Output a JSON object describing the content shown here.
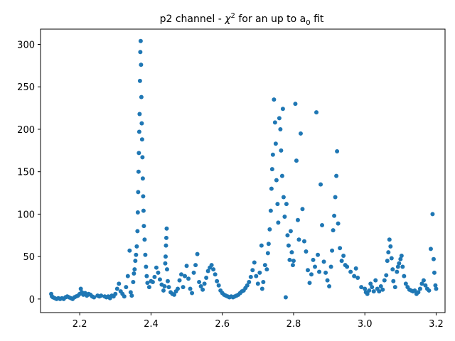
{
  "chart_data": {
    "type": "scatter",
    "title": {
      "prefix": "p2 channel - ",
      "chi": "χ",
      "chi_sup": "2",
      "middle": " for an up to a",
      "sub": "0",
      "suffix": " fit"
    },
    "xlabel": "",
    "ylabel": "",
    "xlim": [
      2.09,
      3.225
    ],
    "ylim": [
      -16,
      318
    ],
    "xticks": [
      2.2,
      2.4,
      2.6,
      2.8,
      3.0,
      3.2
    ],
    "xtick_labels": [
      "2.2",
      "2.4",
      "2.6",
      "2.8",
      "3.0",
      "3.2"
    ],
    "yticks": [
      0,
      50,
      100,
      150,
      200,
      250,
      300
    ],
    "ytick_labels": [
      "0",
      "50",
      "100",
      "150",
      "200",
      "250",
      "300"
    ],
    "grid": false,
    "legend": "none",
    "marker_color": "#1f77b4",
    "series": [
      {
        "points": [
          [
            2.12,
            6
          ],
          [
            2.122,
            3
          ],
          [
            2.125,
            2
          ],
          [
            2.13,
            1
          ],
          [
            2.135,
            0
          ],
          [
            2.14,
            1
          ],
          [
            2.145,
            0
          ],
          [
            2.15,
            1
          ],
          [
            2.155,
            0
          ],
          [
            2.16,
            2
          ],
          [
            2.165,
            3
          ],
          [
            2.17,
            2
          ],
          [
            2.175,
            1
          ],
          [
            2.18,
            0
          ],
          [
            2.185,
            2
          ],
          [
            2.19,
            3
          ],
          [
            2.195,
            4
          ],
          [
            2.2,
            6
          ],
          [
            2.203,
            12
          ],
          [
            2.206,
            8
          ],
          [
            2.21,
            5
          ],
          [
            2.215,
            7
          ],
          [
            2.22,
            4
          ],
          [
            2.225,
            6
          ],
          [
            2.23,
            5
          ],
          [
            2.235,
            3
          ],
          [
            2.24,
            2
          ],
          [
            2.25,
            4
          ],
          [
            2.255,
            3
          ],
          [
            2.26,
            4
          ],
          [
            2.27,
            3
          ],
          [
            2.275,
            2
          ],
          [
            2.28,
            3
          ],
          [
            2.285,
            1
          ],
          [
            2.29,
            4
          ],
          [
            2.295,
            3
          ],
          [
            2.3,
            6
          ],
          [
            2.305,
            12
          ],
          [
            2.31,
            18
          ],
          [
            2.315,
            9
          ],
          [
            2.32,
            6
          ],
          [
            2.325,
            3
          ],
          [
            2.33,
            14
          ],
          [
            2.335,
            27
          ],
          [
            2.34,
            57
          ],
          [
            2.343,
            8
          ],
          [
            2.346,
            4
          ],
          [
            2.35,
            20
          ],
          [
            2.352,
            30
          ],
          [
            2.354,
            35
          ],
          [
            2.356,
            45
          ],
          [
            2.358,
            52
          ],
          [
            2.36,
            62
          ],
          [
            2.362,
            80
          ],
          [
            2.363,
            102
          ],
          [
            2.364,
            126
          ],
          [
            2.365,
            150
          ],
          [
            2.366,
            172
          ],
          [
            2.367,
            197
          ],
          [
            2.368,
            218
          ],
          [
            2.369,
            257
          ],
          [
            2.37,
            291
          ],
          [
            2.371,
            304
          ],
          [
            2.372,
            276
          ],
          [
            2.373,
            238
          ],
          [
            2.374,
            207
          ],
          [
            2.375,
            188
          ],
          [
            2.376,
            167
          ],
          [
            2.377,
            142
          ],
          [
            2.378,
            121
          ],
          [
            2.379,
            104
          ],
          [
            2.38,
            86
          ],
          [
            2.382,
            70
          ],
          [
            2.384,
            52
          ],
          [
            2.386,
            38
          ],
          [
            2.388,
            27
          ],
          [
            2.39,
            19
          ],
          [
            2.395,
            14
          ],
          [
            2.4,
            21
          ],
          [
            2.405,
            20
          ],
          [
            2.41,
            26
          ],
          [
            2.415,
            37
          ],
          [
            2.42,
            31
          ],
          [
            2.425,
            23
          ],
          [
            2.43,
            17
          ],
          [
            2.435,
            10
          ],
          [
            2.438,
            15
          ],
          [
            2.44,
            42
          ],
          [
            2.441,
            50
          ],
          [
            2.442,
            63
          ],
          [
            2.443,
            72
          ],
          [
            2.444,
            83
          ],
          [
            2.445,
            35
          ],
          [
            2.447,
            21
          ],
          [
            2.45,
            14
          ],
          [
            2.455,
            8
          ],
          [
            2.46,
            6
          ],
          [
            2.465,
            5
          ],
          [
            2.47,
            9
          ],
          [
            2.475,
            12
          ],
          [
            2.48,
            22
          ],
          [
            2.485,
            29
          ],
          [
            2.49,
            14
          ],
          [
            2.495,
            27
          ],
          [
            2.5,
            39
          ],
          [
            2.505,
            24
          ],
          [
            2.51,
            12
          ],
          [
            2.515,
            7
          ],
          [
            2.52,
            31
          ],
          [
            2.525,
            40
          ],
          [
            2.53,
            53
          ],
          [
            2.535,
            20
          ],
          [
            2.54,
            15
          ],
          [
            2.545,
            11
          ],
          [
            2.55,
            18
          ],
          [
            2.555,
            25
          ],
          [
            2.56,
            33
          ],
          [
            2.565,
            37
          ],
          [
            2.57,
            40
          ],
          [
            2.575,
            35
          ],
          [
            2.58,
            29
          ],
          [
            2.585,
            21
          ],
          [
            2.59,
            16
          ],
          [
            2.595,
            10
          ],
          [
            2.6,
            7
          ],
          [
            2.605,
            5
          ],
          [
            2.61,
            4
          ],
          [
            2.615,
            3
          ],
          [
            2.62,
            2
          ],
          [
            2.625,
            3
          ],
          [
            2.63,
            2
          ],
          [
            2.635,
            3
          ],
          [
            2.64,
            4
          ],
          [
            2.645,
            5
          ],
          [
            2.65,
            7
          ],
          [
            2.655,
            9
          ],
          [
            2.66,
            10
          ],
          [
            2.665,
            13
          ],
          [
            2.67,
            16
          ],
          [
            2.675,
            20
          ],
          [
            2.68,
            26
          ],
          [
            2.685,
            34
          ],
          [
            2.69,
            43
          ],
          [
            2.695,
            27
          ],
          [
            2.7,
            18
          ],
          [
            2.705,
            31
          ],
          [
            2.71,
            63
          ],
          [
            2.712,
            12
          ],
          [
            2.715,
            20
          ],
          [
            2.72,
            40
          ],
          [
            2.725,
            35
          ],
          [
            2.728,
            54
          ],
          [
            2.73,
            65
          ],
          [
            2.733,
            82
          ],
          [
            2.736,
            104
          ],
          [
            2.738,
            130
          ],
          [
            2.74,
            153
          ],
          [
            2.742,
            170
          ],
          [
            2.745,
            235
          ],
          [
            2.748,
            208
          ],
          [
            2.75,
            183
          ],
          [
            2.752,
            140
          ],
          [
            2.755,
            112
          ],
          [
            2.757,
            90
          ],
          [
            2.76,
            213
          ],
          [
            2.763,
            200
          ],
          [
            2.765,
            175
          ],
          [
            2.768,
            145
          ],
          [
            2.77,
            224
          ],
          [
            2.772,
            120
          ],
          [
            2.775,
            97
          ],
          [
            2.778,
            2
          ],
          [
            2.78,
            112
          ],
          [
            2.783,
            75
          ],
          [
            2.786,
            63
          ],
          [
            2.789,
            46
          ],
          [
            2.792,
            80
          ],
          [
            2.795,
            55
          ],
          [
            2.798,
            40
          ],
          [
            2.8,
            45
          ],
          [
            2.805,
            230
          ],
          [
            2.808,
            163
          ],
          [
            2.812,
            93
          ],
          [
            2.815,
            70
          ],
          [
            2.82,
            195
          ],
          [
            2.825,
            106
          ],
          [
            2.83,
            68
          ],
          [
            2.835,
            56
          ],
          [
            2.84,
            34
          ],
          [
            2.845,
            19
          ],
          [
            2.85,
            29
          ],
          [
            2.855,
            46
          ],
          [
            2.86,
            38
          ],
          [
            2.864,
            220
          ],
          [
            2.868,
            52
          ],
          [
            2.872,
            32
          ],
          [
            2.876,
            135
          ],
          [
            2.88,
            87
          ],
          [
            2.885,
            44
          ],
          [
            2.89,
            31
          ],
          [
            2.895,
            22
          ],
          [
            2.9,
            15
          ],
          [
            2.905,
            38
          ],
          [
            2.908,
            57
          ],
          [
            2.911,
            81
          ],
          [
            2.914,
            98
          ],
          [
            2.917,
            120
          ],
          [
            2.92,
            145
          ],
          [
            2.922,
            174
          ],
          [
            2.925,
            89
          ],
          [
            2.93,
            60
          ],
          [
            2.935,
            45
          ],
          [
            2.94,
            51
          ],
          [
            2.945,
            40
          ],
          [
            2.95,
            38
          ],
          [
            2.96,
            32
          ],
          [
            2.97,
            27
          ],
          [
            2.975,
            36
          ],
          [
            2.98,
            25
          ],
          [
            2.99,
            14
          ],
          [
            3.0,
            12
          ],
          [
            3.003,
            8
          ],
          [
            3.007,
            6
          ],
          [
            3.012,
            10
          ],
          [
            3.016,
            18
          ],
          [
            3.02,
            14
          ],
          [
            3.025,
            9
          ],
          [
            3.03,
            22
          ],
          [
            3.035,
            12
          ],
          [
            3.04,
            9
          ],
          [
            3.045,
            15
          ],
          [
            3.05,
            11
          ],
          [
            3.055,
            22
          ],
          [
            3.06,
            28
          ],
          [
            3.063,
            45
          ],
          [
            3.066,
            55
          ],
          [
            3.069,
            70
          ],
          [
            3.072,
            62
          ],
          [
            3.075,
            48
          ],
          [
            3.078,
            35
          ],
          [
            3.08,
            21
          ],
          [
            3.085,
            14
          ],
          [
            3.09,
            32
          ],
          [
            3.093,
            38
          ],
          [
            3.096,
            42
          ],
          [
            3.1,
            47
          ],
          [
            3.103,
            51
          ],
          [
            3.106,
            38
          ],
          [
            3.11,
            27
          ],
          [
            3.115,
            18
          ],
          [
            3.12,
            14
          ],
          [
            3.125,
            11
          ],
          [
            3.13,
            10
          ],
          [
            3.135,
            9
          ],
          [
            3.14,
            10
          ],
          [
            3.145,
            6
          ],
          [
            3.15,
            8
          ],
          [
            3.155,
            12
          ],
          [
            3.16,
            18
          ],
          [
            3.165,
            22
          ],
          [
            3.17,
            16
          ],
          [
            3.175,
            12
          ],
          [
            3.18,
            10
          ],
          [
            3.185,
            59
          ],
          [
            3.19,
            100
          ],
          [
            3.193,
            47
          ],
          [
            3.195,
            31
          ],
          [
            3.198,
            16
          ],
          [
            3.2,
            12
          ]
        ]
      }
    ]
  }
}
